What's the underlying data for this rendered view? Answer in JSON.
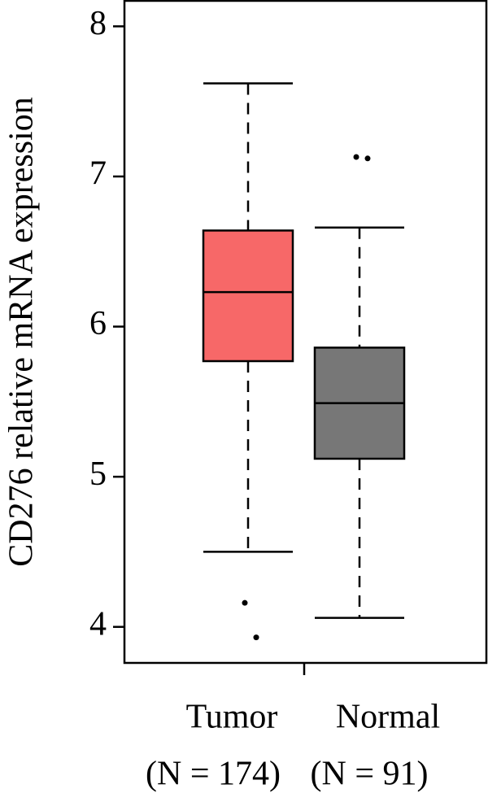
{
  "chart_data": {
    "type": "box",
    "ylabel": "CD276 relative mRNA expression",
    "categories": [
      "Tumor",
      "Normal"
    ],
    "sample_sizes": [
      "(N = 174)",
      "(N = 91)"
    ],
    "boxes": [
      {
        "color": "#f76868",
        "whislo": 4.5,
        "q1": 5.77,
        "med": 6.23,
        "q3": 6.64,
        "whishi": 7.62,
        "outliers": [
          4.16,
          3.93
        ]
      },
      {
        "color": "#777777",
        "whislo": 4.06,
        "q1": 5.12,
        "med": 5.49,
        "q3": 5.86,
        "whishi": 6.66,
        "outliers": [
          7.13,
          7.12
        ]
      }
    ],
    "ylim": [
      3.76,
      8.17
    ],
    "yticks": [
      4,
      5,
      6,
      7,
      8
    ]
  }
}
